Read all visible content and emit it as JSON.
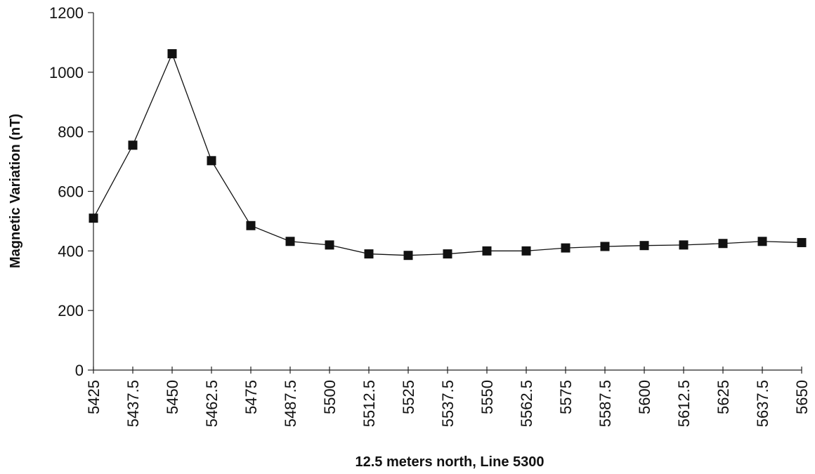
{
  "chart_data": {
    "type": "line",
    "title": "",
    "xlabel": "12.5 meters north, Line 5300",
    "ylabel": "Magnetic Variation (nT)",
    "ylim": [
      0,
      1200
    ],
    "yticks": [
      "0",
      "200",
      "400",
      "600",
      "800",
      "1000",
      "1200"
    ],
    "categories": [
      "5425",
      "5437.5",
      "5450",
      "5462.5",
      "5475",
      "5487.5",
      "5500",
      "5512.5",
      "5525",
      "5537.5",
      "5550",
      "5562.5",
      "5575",
      "5587.5",
      "5600",
      "5612.5",
      "5625",
      "5637.5",
      "5650"
    ],
    "series": [
      {
        "values": [
          510,
          755,
          1062,
          703,
          485,
          432,
          420,
          390,
          385,
          390,
          400,
          400,
          410,
          415,
          418,
          420,
          425,
          432,
          428
        ],
        "marker": "square",
        "color": "#111111"
      }
    ],
    "grid": false,
    "legend": "none"
  }
}
